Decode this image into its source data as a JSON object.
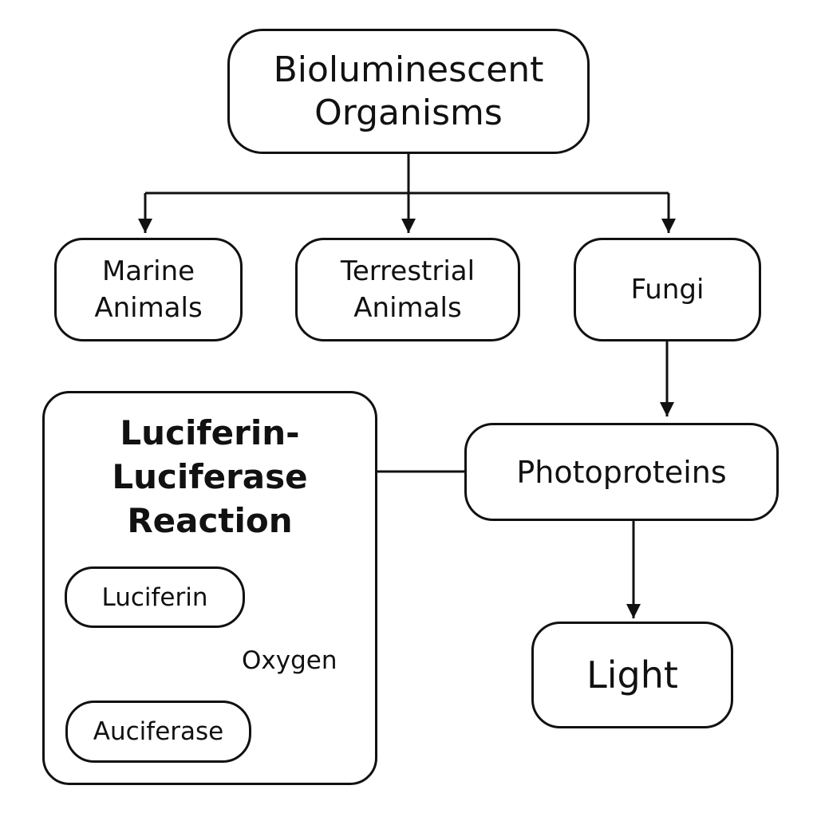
{
  "diagram": {
    "root": "Bioluminescent\nOrganisms",
    "categories": {
      "marine": "Marine\nAnimals",
      "terrestrial": "Terrestrial\nAnimals",
      "fungi": "Fungi"
    },
    "reaction_panel": {
      "title": "Luciferin-\nLuciferase\nReaction",
      "luciferin": "Luciferin",
      "oxygen": "Oxygen",
      "auciferase": "Auciferase"
    },
    "photoproteins": "Photoproteins",
    "light": "Light"
  }
}
